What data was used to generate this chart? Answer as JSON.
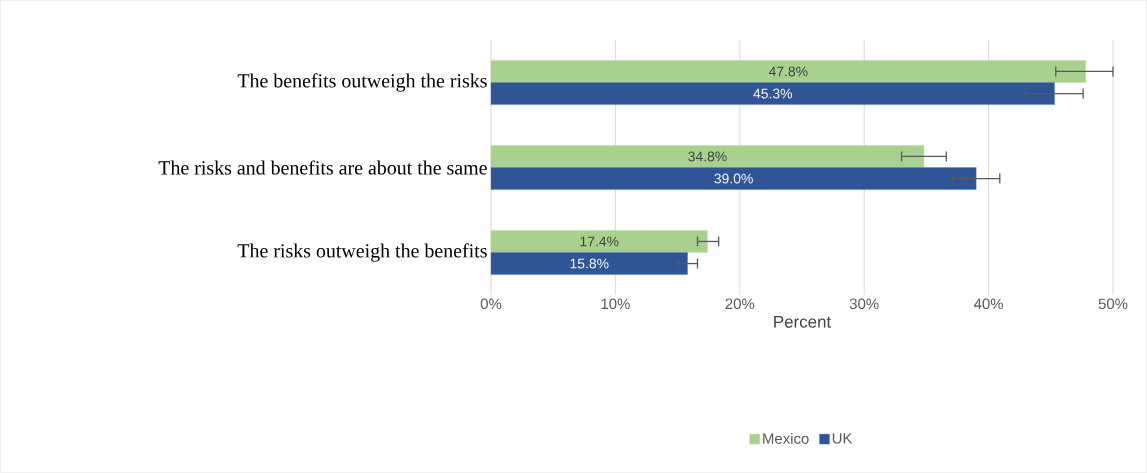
{
  "chart_data": {
    "type": "bar",
    "orientation": "horizontal",
    "xlabel": "Percent",
    "categories": [
      "The benefits outweigh the risks",
      "The risks and benefits are about the same",
      "The risks outweigh the benefits"
    ],
    "series": [
      {
        "name": "Mexico",
        "color": "#a9d18e",
        "values": [
          47.8,
          34.8,
          17.4
        ],
        "value_labels": [
          "47.8%",
          "34.8%",
          "17.4%"
        ],
        "errors": [
          [
            45.4,
            50.0
          ],
          [
            33.0,
            36.6
          ],
          [
            16.6,
            18.3
          ]
        ]
      },
      {
        "name": "UK",
        "color": "#2f5597",
        "values": [
          45.3,
          39.0,
          15.8
        ],
        "value_labels": [
          "45.3%",
          "39.0%",
          "15.8%"
        ],
        "errors": [
          [
            43.0,
            47.6
          ],
          [
            37.1,
            40.9
          ],
          [
            15.0,
            16.6
          ]
        ]
      }
    ],
    "xlim": [
      0,
      50
    ],
    "xticks": [
      {
        "value": 0,
        "label": "0%"
      },
      {
        "value": 10,
        "label": "10%"
      },
      {
        "value": 20,
        "label": "20%"
      },
      {
        "value": 30,
        "label": "30%"
      },
      {
        "value": 40,
        "label": "40%"
      },
      {
        "value": 50,
        "label": "50%"
      }
    ],
    "grid": "x",
    "legend": "bottom"
  }
}
